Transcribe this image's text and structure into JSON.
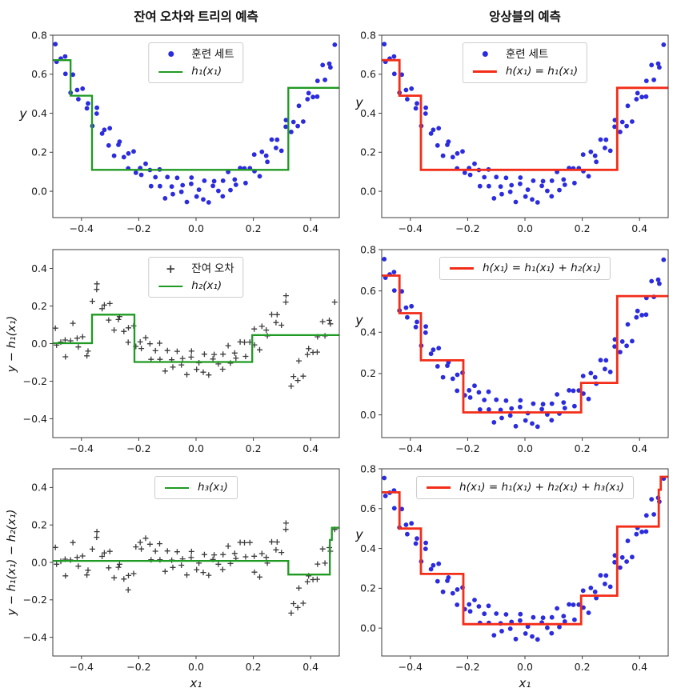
{
  "colors": {
    "scatter": "#2b2bdf",
    "tree": "#1f9a22",
    "ensemble": "#f22d18",
    "residual": "#3b3b3b"
  },
  "chart_data": {
    "type": "scatter+step",
    "col_titles": [
      "잔여 오차와 트리의 예측",
      "앙상블의 예측"
    ],
    "xlim": [
      -0.5,
      0.5
    ],
    "xtick_values": [
      -0.4,
      -0.2,
      0.0,
      0.2,
      0.4
    ],
    "xtick_labels": [
      "−0.4",
      "−0.2",
      "0.0",
      "0.2",
      "0.4"
    ],
    "train": {
      "x": [
        -0.491,
        -0.487,
        -0.472,
        -0.457,
        -0.456,
        -0.438,
        -0.43,
        -0.415,
        -0.411,
        -0.396,
        -0.381,
        -0.377,
        -0.362,
        -0.347,
        -0.346,
        -0.328,
        -0.32,
        -0.305,
        -0.301,
        -0.286,
        -0.271,
        -0.267,
        -0.252,
        -0.237,
        -0.236,
        -0.218,
        -0.21,
        -0.195,
        -0.191,
        -0.176,
        -0.161,
        -0.157,
        -0.142,
        -0.127,
        -0.126,
        -0.108,
        -0.1,
        -0.085,
        -0.081,
        -0.066,
        -0.051,
        -0.047,
        -0.032,
        -0.017,
        -0.016,
        0.002,
        0.01,
        0.025,
        0.029,
        0.044,
        0.059,
        0.063,
        0.078,
        0.093,
        0.094,
        0.112,
        0.12,
        0.135,
        0.139,
        0.154,
        0.169,
        0.173,
        0.188,
        0.203,
        0.204,
        0.222,
        0.23,
        0.245,
        0.249,
        0.264,
        0.279,
        0.283,
        0.298,
        0.313,
        0.314,
        0.332,
        0.34,
        0.355,
        0.359,
        0.374,
        0.389,
        0.393,
        0.408,
        0.423,
        0.424,
        0.442,
        0.45,
        0.465,
        0.469,
        0.484
      ],
      "y": [
        0.754,
        0.664,
        0.68,
        0.691,
        0.602,
        0.505,
        0.598,
        0.519,
        0.472,
        0.526,
        0.425,
        0.45,
        0.335,
        0.398,
        0.428,
        0.296,
        0.315,
        0.235,
        0.323,
        0.182,
        0.238,
        0.254,
        0.175,
        0.117,
        0.194,
        0.204,
        0.095,
        0.119,
        0.084,
        0.141,
        0.109,
        0.026,
        0.072,
        0.112,
        0.026,
        -0.036,
        0.073,
        0.024,
        -0.015,
        0.069,
        -0.003,
        0.031,
        -0.055,
        0.038,
        0.07,
        -0.027,
        0.008,
        -0.042,
        0.054,
        -0.057,
        0.028,
        0.052,
        0.002,
        -0.026,
        0.054,
        0.099,
        0.006,
        0.06,
        0.033,
        0.119,
        0.117,
        0.042,
        0.118,
        0.188,
        0.103,
        0.077,
        0.202,
        0.182,
        0.151,
        0.265,
        0.222,
        0.264,
        0.208,
        0.331,
        0.365,
        0.304,
        0.355,
        0.334,
        0.438,
        0.357,
        0.472,
        0.503,
        0.483,
        0.485,
        0.566,
        0.647,
        0.571,
        0.654,
        0.635,
        0.751
      ]
    },
    "h1": {
      "breaks": [
        -0.438,
        -0.363,
        0.322
      ],
      "values": [
        0.672,
        0.49,
        0.11,
        0.53
      ]
    },
    "h2": {
      "breaks": [
        -0.363,
        -0.215,
        0.196
      ],
      "values": [
        0.002,
        0.154,
        -0.098,
        0.045
      ]
    },
    "h3": {
      "breaks": [
        0.322,
        0.467,
        0.474
      ],
      "values": [
        0.008,
        -0.065,
        0.12,
        0.185
      ]
    },
    "panels": [
      {
        "ylabel": "y",
        "xlabel": "",
        "ylim": [
          -0.135,
          0.8
        ],
        "ytick_values": [
          0.0,
          0.2,
          0.4,
          0.6,
          0.8
        ],
        "ytick_labels": [
          "0.0",
          "0.2",
          "0.4",
          "0.6",
          "0.8"
        ],
        "scatter": "train",
        "marker": "dot",
        "lines": [
          "h1"
        ],
        "line_color": "tree",
        "line_width": 2.3,
        "legend": [
          {
            "marker": "dot",
            "color": "scatter",
            "label": "훈련 세트",
            "math": false
          },
          {
            "marker": "line",
            "color": "tree",
            "label": "h₁(x₁)",
            "math": true
          }
        ]
      },
      {
        "ylabel": "y",
        "xlabel": "",
        "ylim": [
          -0.135,
          0.8
        ],
        "ytick_values": [
          0.0,
          0.2,
          0.4,
          0.6,
          0.8
        ],
        "ytick_labels": [
          "0.0",
          "0.2",
          "0.4",
          "0.6",
          "0.8"
        ],
        "scatter": "train",
        "marker": "dot",
        "lines": [
          "h1"
        ],
        "line_color": "ensemble",
        "line_width": 2.8,
        "legend": [
          {
            "marker": "dot",
            "color": "scatter",
            "label": "훈련 세트",
            "math": false
          },
          {
            "marker": "line",
            "color": "ensemble",
            "label": "h(x₁) = h₁(x₁)",
            "math": true
          }
        ]
      },
      {
        "ylabel": "y − h₁(x₁)",
        "xlabel": "",
        "ylim": [
          -0.5,
          0.5
        ],
        "ytick_values": [
          -0.4,
          -0.2,
          0.0,
          0.2,
          0.4
        ],
        "ytick_labels": [
          "−0.4",
          "−0.2",
          "0.0",
          "0.2",
          "0.4"
        ],
        "scatter": "residual1",
        "marker": "plus",
        "lines": [
          "h2"
        ],
        "line_color": "tree",
        "line_width": 2.3,
        "legend": [
          {
            "marker": "plus",
            "color": "residual",
            "label": "잔여 오차",
            "math": false
          },
          {
            "marker": "line",
            "color": "tree",
            "label": "h₂(x₁)",
            "math": true
          }
        ]
      },
      {
        "ylabel": "y",
        "xlabel": "",
        "ylim": [
          -0.11,
          0.8
        ],
        "ytick_values": [
          0.0,
          0.2,
          0.4,
          0.6,
          0.8
        ],
        "ytick_labels": [
          "0.0",
          "0.2",
          "0.4",
          "0.6",
          "0.8"
        ],
        "scatter": "train",
        "marker": "dot",
        "lines": [
          "h1",
          "h2"
        ],
        "line_color": "ensemble",
        "line_width": 2.8,
        "legend": [
          {
            "marker": "line",
            "color": "ensemble",
            "label": "h(x₁) = h₁(x₁) + h₂(x₁)",
            "math": true
          }
        ]
      },
      {
        "ylabel": "y − h₁(x₁) − h₂(x₁)",
        "xlabel": "x₁",
        "ylim": [
          -0.5,
          0.5
        ],
        "ytick_values": [
          -0.4,
          -0.2,
          0.0,
          0.2,
          0.4
        ],
        "ytick_labels": [
          "−0.4",
          "−0.2",
          "0.0",
          "0.2",
          "0.4"
        ],
        "scatter": "residual2",
        "marker": "plus",
        "lines": [
          "h3"
        ],
        "line_color": "tree",
        "line_width": 2.3,
        "legend": [
          {
            "marker": "line",
            "color": "tree",
            "label": "h₃(x₁)",
            "math": true
          }
        ]
      },
      {
        "ylabel": "y",
        "xlabel": "x₁",
        "ylim": [
          -0.14,
          0.8
        ],
        "ytick_values": [
          0.0,
          0.2,
          0.4,
          0.6,
          0.8
        ],
        "ytick_labels": [
          "0.0",
          "0.2",
          "0.4",
          "0.6",
          "0.8"
        ],
        "scatter": "train",
        "marker": "dot",
        "lines": [
          "h1",
          "h2",
          "h3"
        ],
        "line_color": "ensemble",
        "line_width": 2.8,
        "legend": [
          {
            "marker": "line",
            "color": "ensemble",
            "label": "h(x₁) = h₁(x₁) + h₂(x₁) + h₃(x₁)",
            "math": true
          }
        ]
      }
    ]
  }
}
